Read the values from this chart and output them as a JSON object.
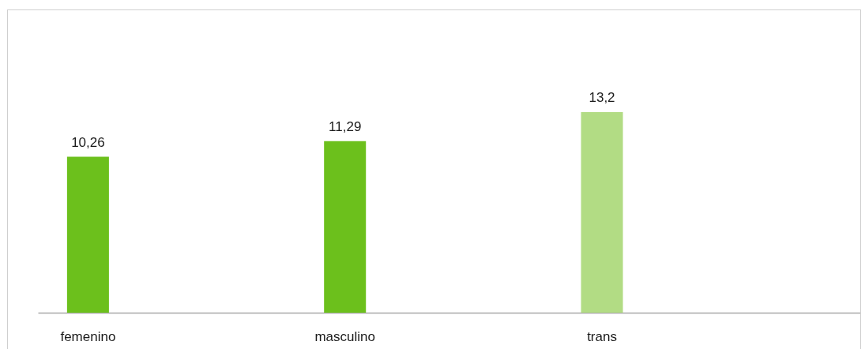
{
  "chart_data": {
    "type": "bar",
    "categories": [
      "femenino",
      "masculino",
      "trans"
    ],
    "values": [
      10.26,
      11.29,
      13.2
    ],
    "colors": [
      "#6cc01c",
      "#6cc01c",
      "#b2dc84"
    ],
    "value_labels": [
      "10,26",
      "11,29",
      "13,2"
    ]
  }
}
